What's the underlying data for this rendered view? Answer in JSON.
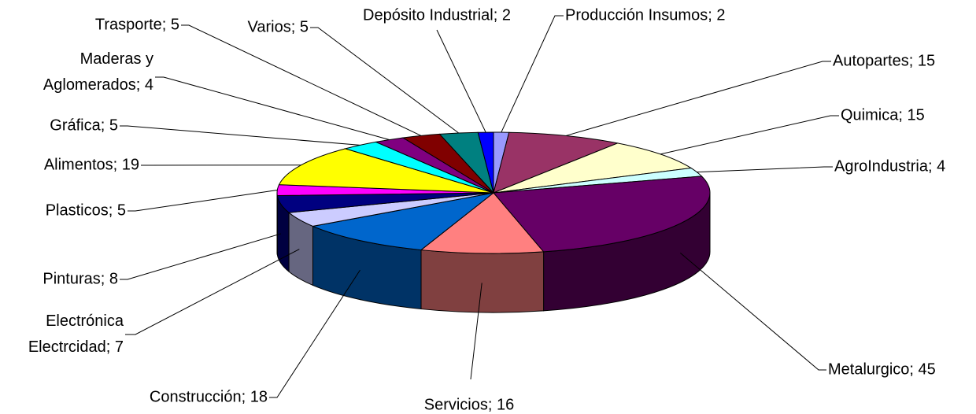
{
  "chart_data": {
    "type": "pie3d",
    "categories": [
      "Producción Insumos",
      "Autopartes",
      "Quimica",
      "AgroIndustria",
      "Metalurgico",
      "Servicios",
      "Construcción",
      "Electrónica Electrcidad",
      "Pinturas",
      "Plasticos",
      "Alimentos",
      "Gráfica",
      "Maderas y Aglomerados",
      "Trasporte",
      "Varios",
      "Depósito Industrial"
    ],
    "values": [
      2,
      15,
      15,
      4,
      45,
      16,
      18,
      7,
      8,
      5,
      19,
      5,
      4,
      5,
      5,
      2
    ],
    "colors": [
      "#9999ff",
      "#993366",
      "#ffffcc",
      "#ccffff",
      "#660066",
      "#ff8080",
      "#0066cc",
      "#ccccff",
      "#000080",
      "#ff00ff",
      "#ffff00",
      "#00ffff",
      "#800080",
      "#800000",
      "#008080",
      "#0000ff"
    ],
    "label_separator": "; "
  }
}
